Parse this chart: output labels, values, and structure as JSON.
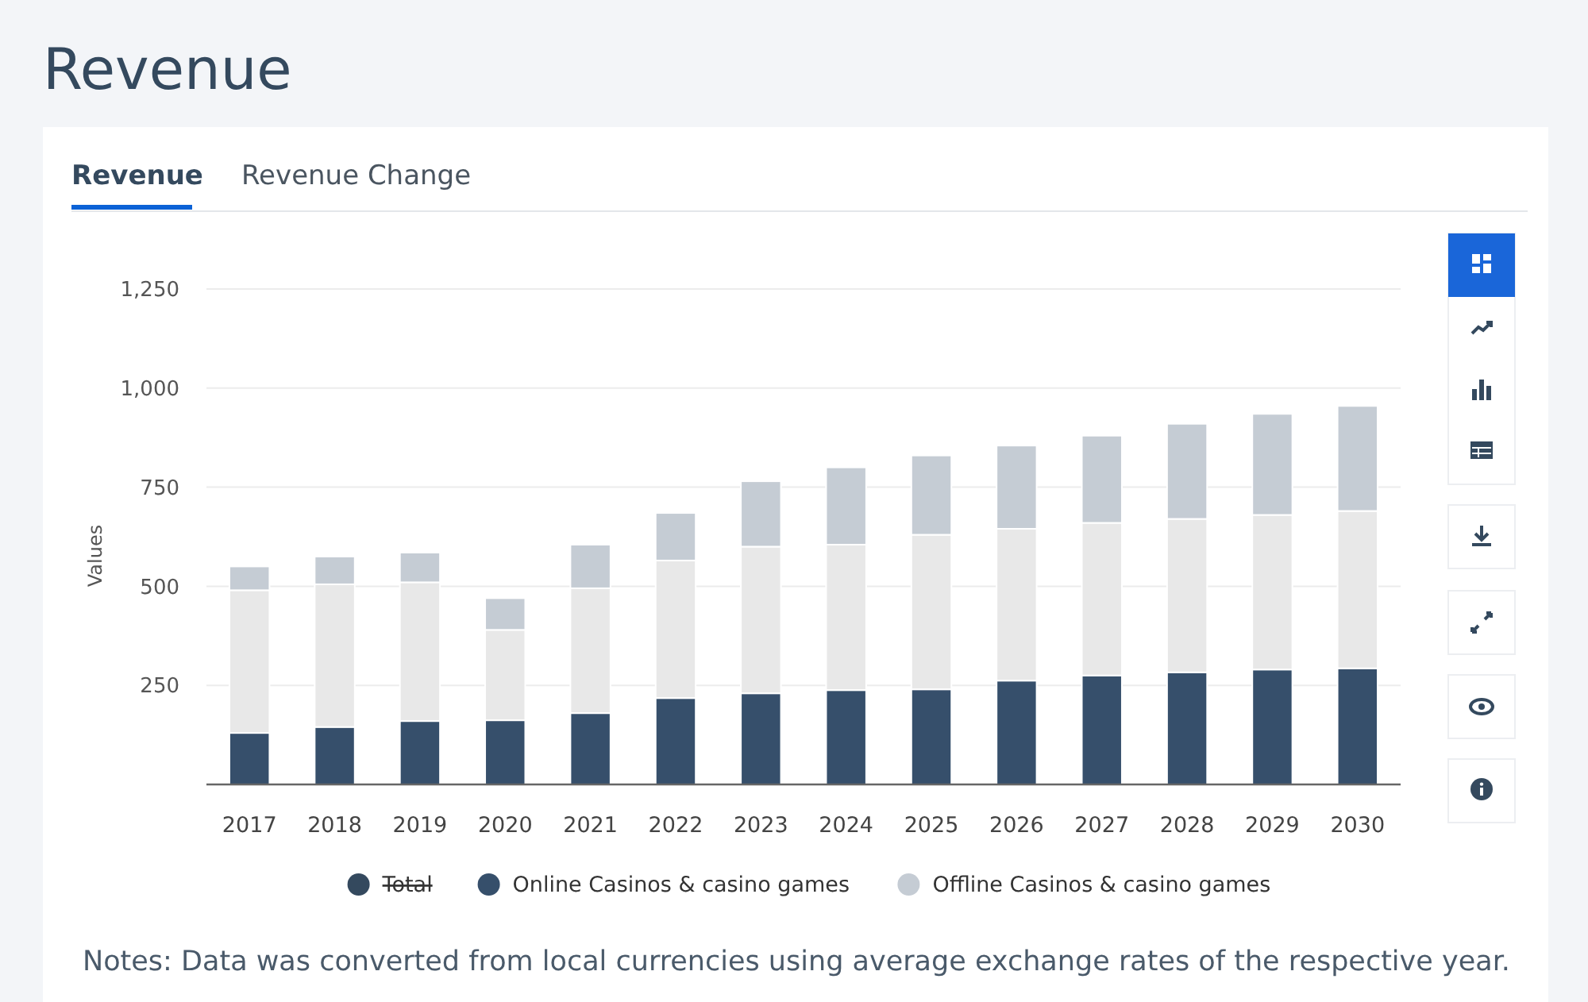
{
  "chart_data": {
    "type": "bar",
    "title": "Revenue",
    "ylabel": "Values",
    "annotations": [
      "Revenue",
      "Revenue Change",
      "Notes: Data was converted from local currencies using average exchange rates of the respective year."
    ],
    "categories": [
      "2017",
      "2018",
      "2019",
      "2020",
      "2021",
      "2022",
      "2023",
      "2024",
      "2025",
      "2026",
      "2027",
      "2028",
      "2029",
      "2030"
    ],
    "stacked": true,
    "series": [
      {
        "name": "Total",
        "color": "#34495e",
        "values": [
          null,
          null,
          null,
          null,
          null,
          null,
          null,
          null,
          null,
          null,
          null,
          null,
          null,
          null
        ]
      },
      {
        "name": "Online Casinos & casino games",
        "color": "#364f6b",
        "values": [
          130,
          145,
          160,
          162,
          180,
          218,
          230,
          238,
          240,
          262,
          275,
          283,
          290,
          293
        ]
      },
      {
        "color": "#e8e8e8",
        "values": [
          360,
          360,
          350,
          228,
          315,
          347,
          370,
          367,
          390,
          383,
          385,
          387,
          390,
          397
        ]
      },
      {
        "name": "Offline Casinos & casino games",
        "color": "#c5ccd4",
        "values": [
          60,
          70,
          75,
          80,
          110,
          120,
          165,
          195,
          200,
          210,
          220,
          240,
          255,
          265
        ]
      }
    ],
    "ylim": [
      0,
      1250
    ],
    "yticks": [
      {
        "value": 250,
        "label": "250"
      },
      {
        "value": 500,
        "label": "500"
      },
      {
        "value": 750,
        "label": "750"
      },
      {
        "value": 1000,
        "label": "1,000"
      },
      {
        "value": 1250,
        "label": "1,250"
      }
    ],
    "grid": "y",
    "legend": "bottom"
  }
}
